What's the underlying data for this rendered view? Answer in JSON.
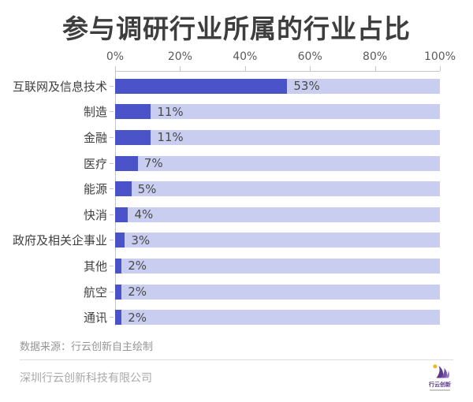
{
  "title": "参与调研行业所属的行业占比",
  "chart_data": {
    "type": "bar",
    "orientation": "horizontal",
    "title": "参与调研行业所属的行业占比",
    "categories": [
      "互联网及信息技术",
      "制造",
      "金融",
      "医疗",
      "能源",
      "快消",
      "政府及相关企事业",
      "其他",
      "航空",
      "通讯"
    ],
    "values": [
      53,
      11,
      11,
      7,
      5,
      4,
      3,
      2,
      2,
      2
    ],
    "value_labels": [
      "53%",
      "11%",
      "11%",
      "7%",
      "5%",
      "4%",
      "3%",
      "2%",
      "2%",
      "2%"
    ],
    "xlim": [
      0,
      100
    ],
    "x_ticks": [
      "0%",
      "20%",
      "40%",
      "60%",
      "80%",
      "100%"
    ],
    "x_tick_values": [
      0,
      20,
      40,
      60,
      80,
      100
    ],
    "axis_position": "top",
    "grid": false,
    "bar_color": "#4a53c8",
    "track_color": "#c9cdf0"
  },
  "footer": {
    "source": "数据来源：行云创新自主绘制",
    "company": "深圳行云创新科技有限公司",
    "logo_text": "行云创新"
  }
}
